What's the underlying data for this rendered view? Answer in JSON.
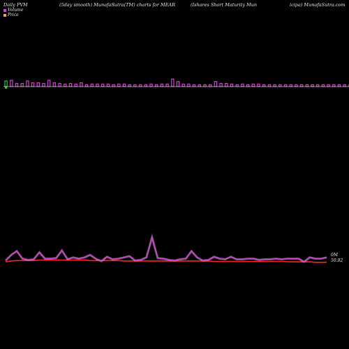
{
  "header": {
    "left": "Daily PVM",
    "smooth": "(5day smooth) MunafaSutra(TM) charts for MEAR",
    "title_part1": "(Ishares Short Maturity Mun",
    "title_part2": "icipa) MunafaSutra.com"
  },
  "legend": [
    {
      "label": "Volume",
      "color": "#d040d0"
    },
    {
      "label": "Price",
      "color": "#f0a060"
    }
  ],
  "colors": {
    "bar_up": "#d040d0",
    "bar_down": "#30c030",
    "pvm_line": "#d040d0",
    "price_line": "#ff2020",
    "axis_line": "#c8c8c8"
  },
  "chart_data": {
    "type": "line",
    "volume_ratio": [
      0.9,
      1.0,
      0.5,
      0.5,
      0.9,
      0.6,
      0.6,
      0.5,
      1.0,
      0.6,
      0.5,
      0.4,
      0.5,
      0.4,
      0.6,
      0.3,
      0.4,
      0.4,
      0.4,
      0.4,
      0.3,
      0.4,
      0.4,
      0.3,
      0.3,
      0.3,
      0.3,
      0.4,
      0.3,
      0.4,
      0.4,
      1.2,
      0.8,
      0.4,
      0.4,
      0.3,
      0.3,
      0.3,
      0.3,
      0.8,
      0.5,
      0.5,
      0.4,
      0.3,
      0.4,
      0.3,
      0.4,
      0.4,
      0.3,
      0.3,
      0.3,
      0.3,
      0.3,
      0.3,
      0.3,
      0.3,
      0.3,
      0.3,
      0.3,
      0.3,
      0.3,
      0.3,
      0.3,
      0.3,
      0.3,
      0.3
    ],
    "volume_down_index": [
      0
    ],
    "pvm": [
      52.3,
      53.2,
      53.8,
      52.6,
      52.4,
      52.5,
      53.6,
      52.6,
      52.6,
      52.7,
      53.9,
      52.5,
      52.8,
      52.6,
      52.8,
      53.2,
      52.6,
      52.2,
      52.9,
      52.5,
      52.6,
      52.8,
      53.0,
      52.3,
      52.4,
      52.8,
      56.0,
      52.7,
      52.6,
      52.4,
      52.3,
      52.5,
      52.6,
      53.8,
      52.8,
      52.3,
      52.4,
      52.9,
      52.6,
      52.5,
      52.9,
      52.5,
      52.5,
      52.6,
      52.6,
      52.4,
      52.5,
      52.5,
      52.6,
      52.5,
      52.6,
      52.6,
      52.6,
      52.1,
      52.8,
      52.6,
      52.6,
      52.8
    ],
    "price": [
      50.95,
      50.97,
      50.98,
      50.98,
      50.98,
      50.98,
      50.99,
      50.99,
      50.99,
      50.99,
      50.99,
      50.99,
      50.99,
      50.99,
      50.99,
      50.98,
      50.98,
      50.98,
      50.98,
      50.98,
      50.98,
      50.97,
      50.97,
      50.97,
      50.97,
      50.97,
      50.97,
      50.97,
      50.97,
      50.97,
      50.97,
      50.97,
      50.97,
      50.97,
      50.97,
      50.97,
      50.97,
      50.96,
      50.96,
      50.96,
      50.96,
      50.96,
      50.96,
      50.96,
      50.96,
      50.96,
      50.96,
      50.96,
      50.96,
      50.96,
      50.95,
      50.95,
      50.95,
      50.95,
      50.95,
      50.94,
      50.94,
      50.94
    ],
    "value_labels": {
      "volume": "0M",
      "price": "50.92"
    }
  }
}
